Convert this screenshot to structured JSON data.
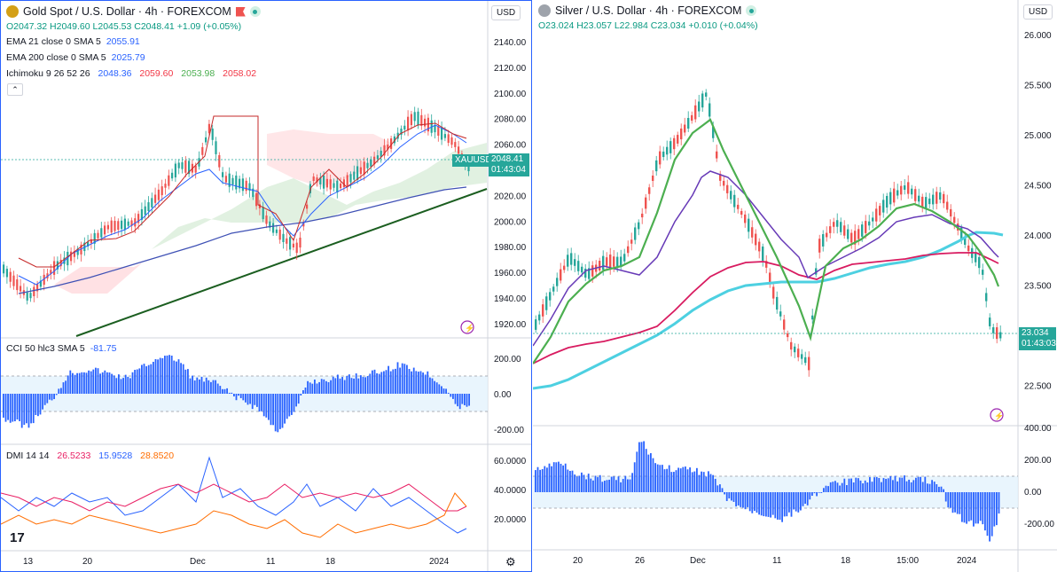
{
  "left": {
    "title": "Gold Spot / U.S. Dollar · 4h · FOREXCOM",
    "currency": "USD",
    "ohlc": {
      "o": "O2047.32",
      "h": "H2049.60",
      "l": "L2045.53",
      "c": "C2048.41",
      "chg": "+1.09 (+0.05%)"
    },
    "ema21": {
      "label": "EMA 21 close 0 SMA 5",
      "value": "2055.91"
    },
    "ema200": {
      "label": "EMA 200 close 0 SMA 5",
      "value": "2025.79"
    },
    "ichimoku": {
      "label": "Ichimoku 9 26 52 26",
      "v1": "2048.36",
      "v2": "2059.60",
      "v3": "2053.98",
      "v4": "2058.02"
    },
    "price_axis": [
      "2140.00",
      "2120.00",
      "2100.00",
      "2080.00",
      "2060.00",
      "2040.00",
      "2020.00",
      "2000.00",
      "1980.00",
      "1960.00",
      "1940.00",
      "1920.00"
    ],
    "symbol_tag": "XAUUSD",
    "last_price": "2048.41",
    "countdown": "01:43:04",
    "cci": {
      "label": "CCI 50 hlc3 SMA 5",
      "value": "-81.75",
      "axis": [
        "200.00",
        "0.00",
        "-200.00"
      ]
    },
    "dmi": {
      "label": "DMI 14 14",
      "v1": "26.5233",
      "v2": "15.9528",
      "v3": "28.8520",
      "axis": [
        "60.0000",
        "40.0000",
        "20.0000"
      ]
    },
    "time_axis": [
      "13",
      "20",
      "Dec",
      "11",
      "18",
      "2024"
    ]
  },
  "right": {
    "title": "Silver / U.S. Dollar · 4h · FOREXCOM",
    "currency": "USD",
    "ohlc": {
      "o": "O23.024",
      "h": "H23.057",
      "l": "L22.984",
      "c": "C23.034",
      "chg": "+0.010 (+0.04%)"
    },
    "price_axis": [
      "26.000",
      "25.500",
      "25.000",
      "24.500",
      "24.000",
      "23.500",
      "23.000",
      "22.500"
    ],
    "last_price": "23.034",
    "countdown": "01:43:03",
    "osc_axis": [
      "400.00",
      "200.00",
      "0.00",
      "-200.00"
    ],
    "time_axis": [
      "20",
      "26",
      "Dec",
      "11",
      "18",
      "15:00",
      "2024"
    ]
  },
  "colors": {
    "up": "#26a69a",
    "down": "#ef5350",
    "accent": "#2962ff",
    "trendline": "#1b5e20"
  }
}
